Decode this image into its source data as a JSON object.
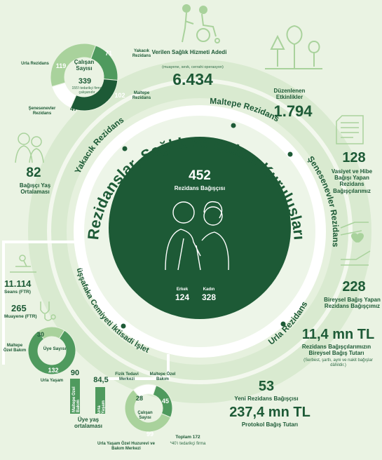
{
  "hub": {
    "count": "452",
    "label": "Rezidans Bağışçısı",
    "gender": [
      {
        "label": "Erkek",
        "value": "124"
      },
      {
        "label": "Kadın",
        "value": "328"
      }
    ]
  },
  "ring_titles": {
    "main": "Rezidanslar, Sağlık ve Bakım Kuruluşları",
    "maltepe": "Maltepe Rezidans",
    "yakacik": "Yakacık Rezidans",
    "senesenevler": "Şenesenevler Rezidans",
    "urla": "Urla Rezidans",
    "daruss": "Darüşşafaka Cemiyeti İktisadi İşletmesi"
  },
  "stats": {
    "health_label": "Verilen Sağlık Hizmeti Adedi",
    "health_sub": "(muayene, sevk, cerrahi operasyon)",
    "health_value": "6.434",
    "events_label": "Düzenlenen Etkinlikler",
    "events_value": "1.794",
    "will_value": "128",
    "will_label": "Vasiyet ve Hibe Bağışı Yapan Rezidans Bağışçılarımız",
    "indiv_value": "228",
    "indiv_label": "Bireysel Bağış Yapan Rezidans Bağışçımız",
    "total_value": "11,4 mn TL",
    "total_label": "Rezidans Bağışçılarımızın Bireysel Bağış Tutarı",
    "total_sub": "(Serbest, şartlı, ayni ve nakit bağışlar dâhildir.)",
    "new_value": "53",
    "new_label": "Yeni Rezidans Bağışçısı",
    "protocol_value": "237,4 mn TL",
    "protocol_label": "Protokol Bağış Tutarı",
    "age_value": "82",
    "age_label": "Bağışçı Yaş Ortalaması",
    "seans_value": "11.114",
    "seans_label": "Seans (FTR)",
    "muayene_value": "265",
    "muayene_label": "Muayene (FTR)"
  },
  "employees_top": {
    "title": "Çalışan Sayısı",
    "total": "339",
    "note": "155'i tedarikçi firma çalışanıdır",
    "segments": [
      {
        "name": "Yakacık Rezidans",
        "value": "71",
        "color": "#4f9a5e"
      },
      {
        "name": "Maltepe Rezidans",
        "value": "102",
        "color": "#1d5a36"
      },
      {
        "name": "Şenesenevler Rezidans",
        "value": "47",
        "color": "#ffffff"
      },
      {
        "name": "Urla Rezidans",
        "value": "119",
        "color": "#a9d29c"
      }
    ]
  },
  "residents_left": {
    "title": "Üye Sayısı",
    "segments": [
      {
        "name": "Maltepe Özel Bakım",
        "value": "30"
      },
      {
        "name": "Urla Yaşam",
        "value": "132"
      }
    ]
  },
  "age_bars": {
    "title": "Üye yaş ortalaması",
    "bars": [
      {
        "name": "Maltepe Özel Bakım",
        "value": "90"
      },
      {
        "name": "Urla Yaşam",
        "value": "84,5"
      }
    ]
  },
  "employees_bottom": {
    "title": "Çalışan Sayısı",
    "total_label": "Toplam 172",
    "note": "*40'ı tedarikçi firma",
    "segments": [
      {
        "name": "Fizik Tedavi Merkezi",
        "value": "28"
      },
      {
        "name": "Maltepe Özel Bakım",
        "value": "45"
      },
      {
        "name": "Urla Yaşam Özel Huzurevi ve Bakım Merkezi",
        "value": "99"
      }
    ]
  }
}
